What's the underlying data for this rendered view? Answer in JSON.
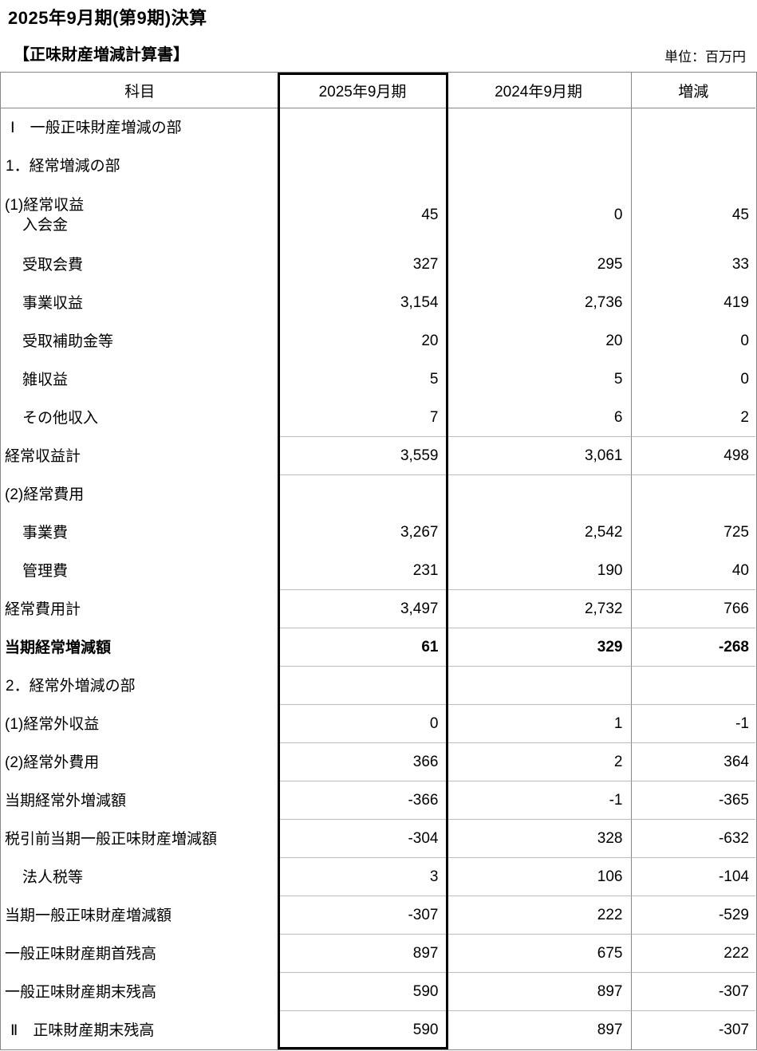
{
  "page": {
    "title": "2025年9月期(第9期)決算",
    "statement_title": "【正味財産増減計算書】",
    "unit_label": "単位：百万円"
  },
  "table": {
    "columns": [
      "科目",
      "2025年9月期",
      "2024年9月期",
      "増減"
    ],
    "rows": [
      {
        "label": "Ⅰ　一般正味財産増減の部",
        "values": [
          "",
          "",
          ""
        ],
        "indent": "section",
        "bold": false,
        "separator": false,
        "tall": false
      },
      {
        "label": "1．経常増減の部",
        "values": [
          "",
          "",
          ""
        ],
        "indent": "num",
        "bold": false,
        "separator": false,
        "tall": false
      },
      {
        "label": "(1)経常収益",
        "label_line2": "入会金",
        "values": [
          "45",
          "0",
          "45"
        ],
        "indent": "group",
        "bold": false,
        "separator": false,
        "tall": true
      },
      {
        "label": "受取会費",
        "values": [
          "327",
          "295",
          "33"
        ],
        "indent": "item",
        "bold": false,
        "separator": false,
        "tall": false
      },
      {
        "label": "事業収益",
        "values": [
          "3,154",
          "2,736",
          "419"
        ],
        "indent": "item",
        "bold": false,
        "separator": false,
        "tall": false
      },
      {
        "label": "受取補助金等",
        "values": [
          "20",
          "20",
          "0"
        ],
        "indent": "item",
        "bold": false,
        "separator": false,
        "tall": false
      },
      {
        "label": "雑収益",
        "values": [
          "5",
          "5",
          "0"
        ],
        "indent": "item",
        "bold": false,
        "separator": false,
        "tall": false
      },
      {
        "label": "その他収入",
        "values": [
          "7",
          "6",
          "2"
        ],
        "indent": "item",
        "bold": false,
        "separator": true,
        "tall": false
      },
      {
        "label": "経常収益計",
        "values": [
          "3,559",
          "3,061",
          "498"
        ],
        "indent": "group",
        "bold": false,
        "separator": true,
        "tall": false
      },
      {
        "label": "(2)経常費用",
        "values": [
          "",
          "",
          ""
        ],
        "indent": "group",
        "bold": false,
        "separator": false,
        "tall": false
      },
      {
        "label": "事業費",
        "values": [
          "3,267",
          "2,542",
          "725"
        ],
        "indent": "item",
        "bold": false,
        "separator": false,
        "tall": false
      },
      {
        "label": "管理費",
        "values": [
          "231",
          "190",
          "40"
        ],
        "indent": "item",
        "bold": false,
        "separator": true,
        "tall": false
      },
      {
        "label": "経常費用計",
        "values": [
          "3,497",
          "2,732",
          "766"
        ],
        "indent": "group",
        "bold": false,
        "separator": true,
        "tall": false
      },
      {
        "label": "当期経常増減額",
        "values": [
          "61",
          "329",
          "-268"
        ],
        "indent": "group",
        "bold": true,
        "separator": true,
        "tall": false
      },
      {
        "label": "2．経常外増減の部",
        "values": [
          "",
          "",
          ""
        ],
        "indent": "num",
        "bold": false,
        "separator": true,
        "tall": false
      },
      {
        "label": "(1)経常外収益",
        "values": [
          "0",
          "1",
          "-1"
        ],
        "indent": "group",
        "bold": false,
        "separator": true,
        "tall": false
      },
      {
        "label": "(2)経常外費用",
        "values": [
          "366",
          "2",
          "364"
        ],
        "indent": "group",
        "bold": false,
        "separator": true,
        "tall": false
      },
      {
        "label": "当期経常外増減額",
        "values": [
          "-366",
          "-1",
          "-365"
        ],
        "indent": "group",
        "bold": false,
        "separator": true,
        "tall": false
      },
      {
        "label": "税引前当期一般正味財産増減額",
        "values": [
          "-304",
          "328",
          "-632"
        ],
        "indent": "group",
        "bold": false,
        "separator": true,
        "tall": false
      },
      {
        "label": "法人税等",
        "values": [
          "3",
          "106",
          "-104"
        ],
        "indent": "item",
        "bold": false,
        "separator": true,
        "tall": false
      },
      {
        "label": "当期一般正味財産増減額",
        "values": [
          "-307",
          "222",
          "-529"
        ],
        "indent": "group",
        "bold": false,
        "separator": true,
        "tall": false
      },
      {
        "label": "一般正味財産期首残高",
        "values": [
          "897",
          "675",
          "222"
        ],
        "indent": "group",
        "bold": false,
        "separator": true,
        "tall": false
      },
      {
        "label": "一般正味財産期末残高",
        "values": [
          "590",
          "897",
          "-307"
        ],
        "indent": "group",
        "bold": false,
        "separator": true,
        "tall": false
      },
      {
        "label": "Ⅱ　正味財産期末残高",
        "values": [
          "590",
          "897",
          "-307"
        ],
        "indent": "section",
        "bold": false,
        "separator": false,
        "tall": false
      }
    ]
  }
}
